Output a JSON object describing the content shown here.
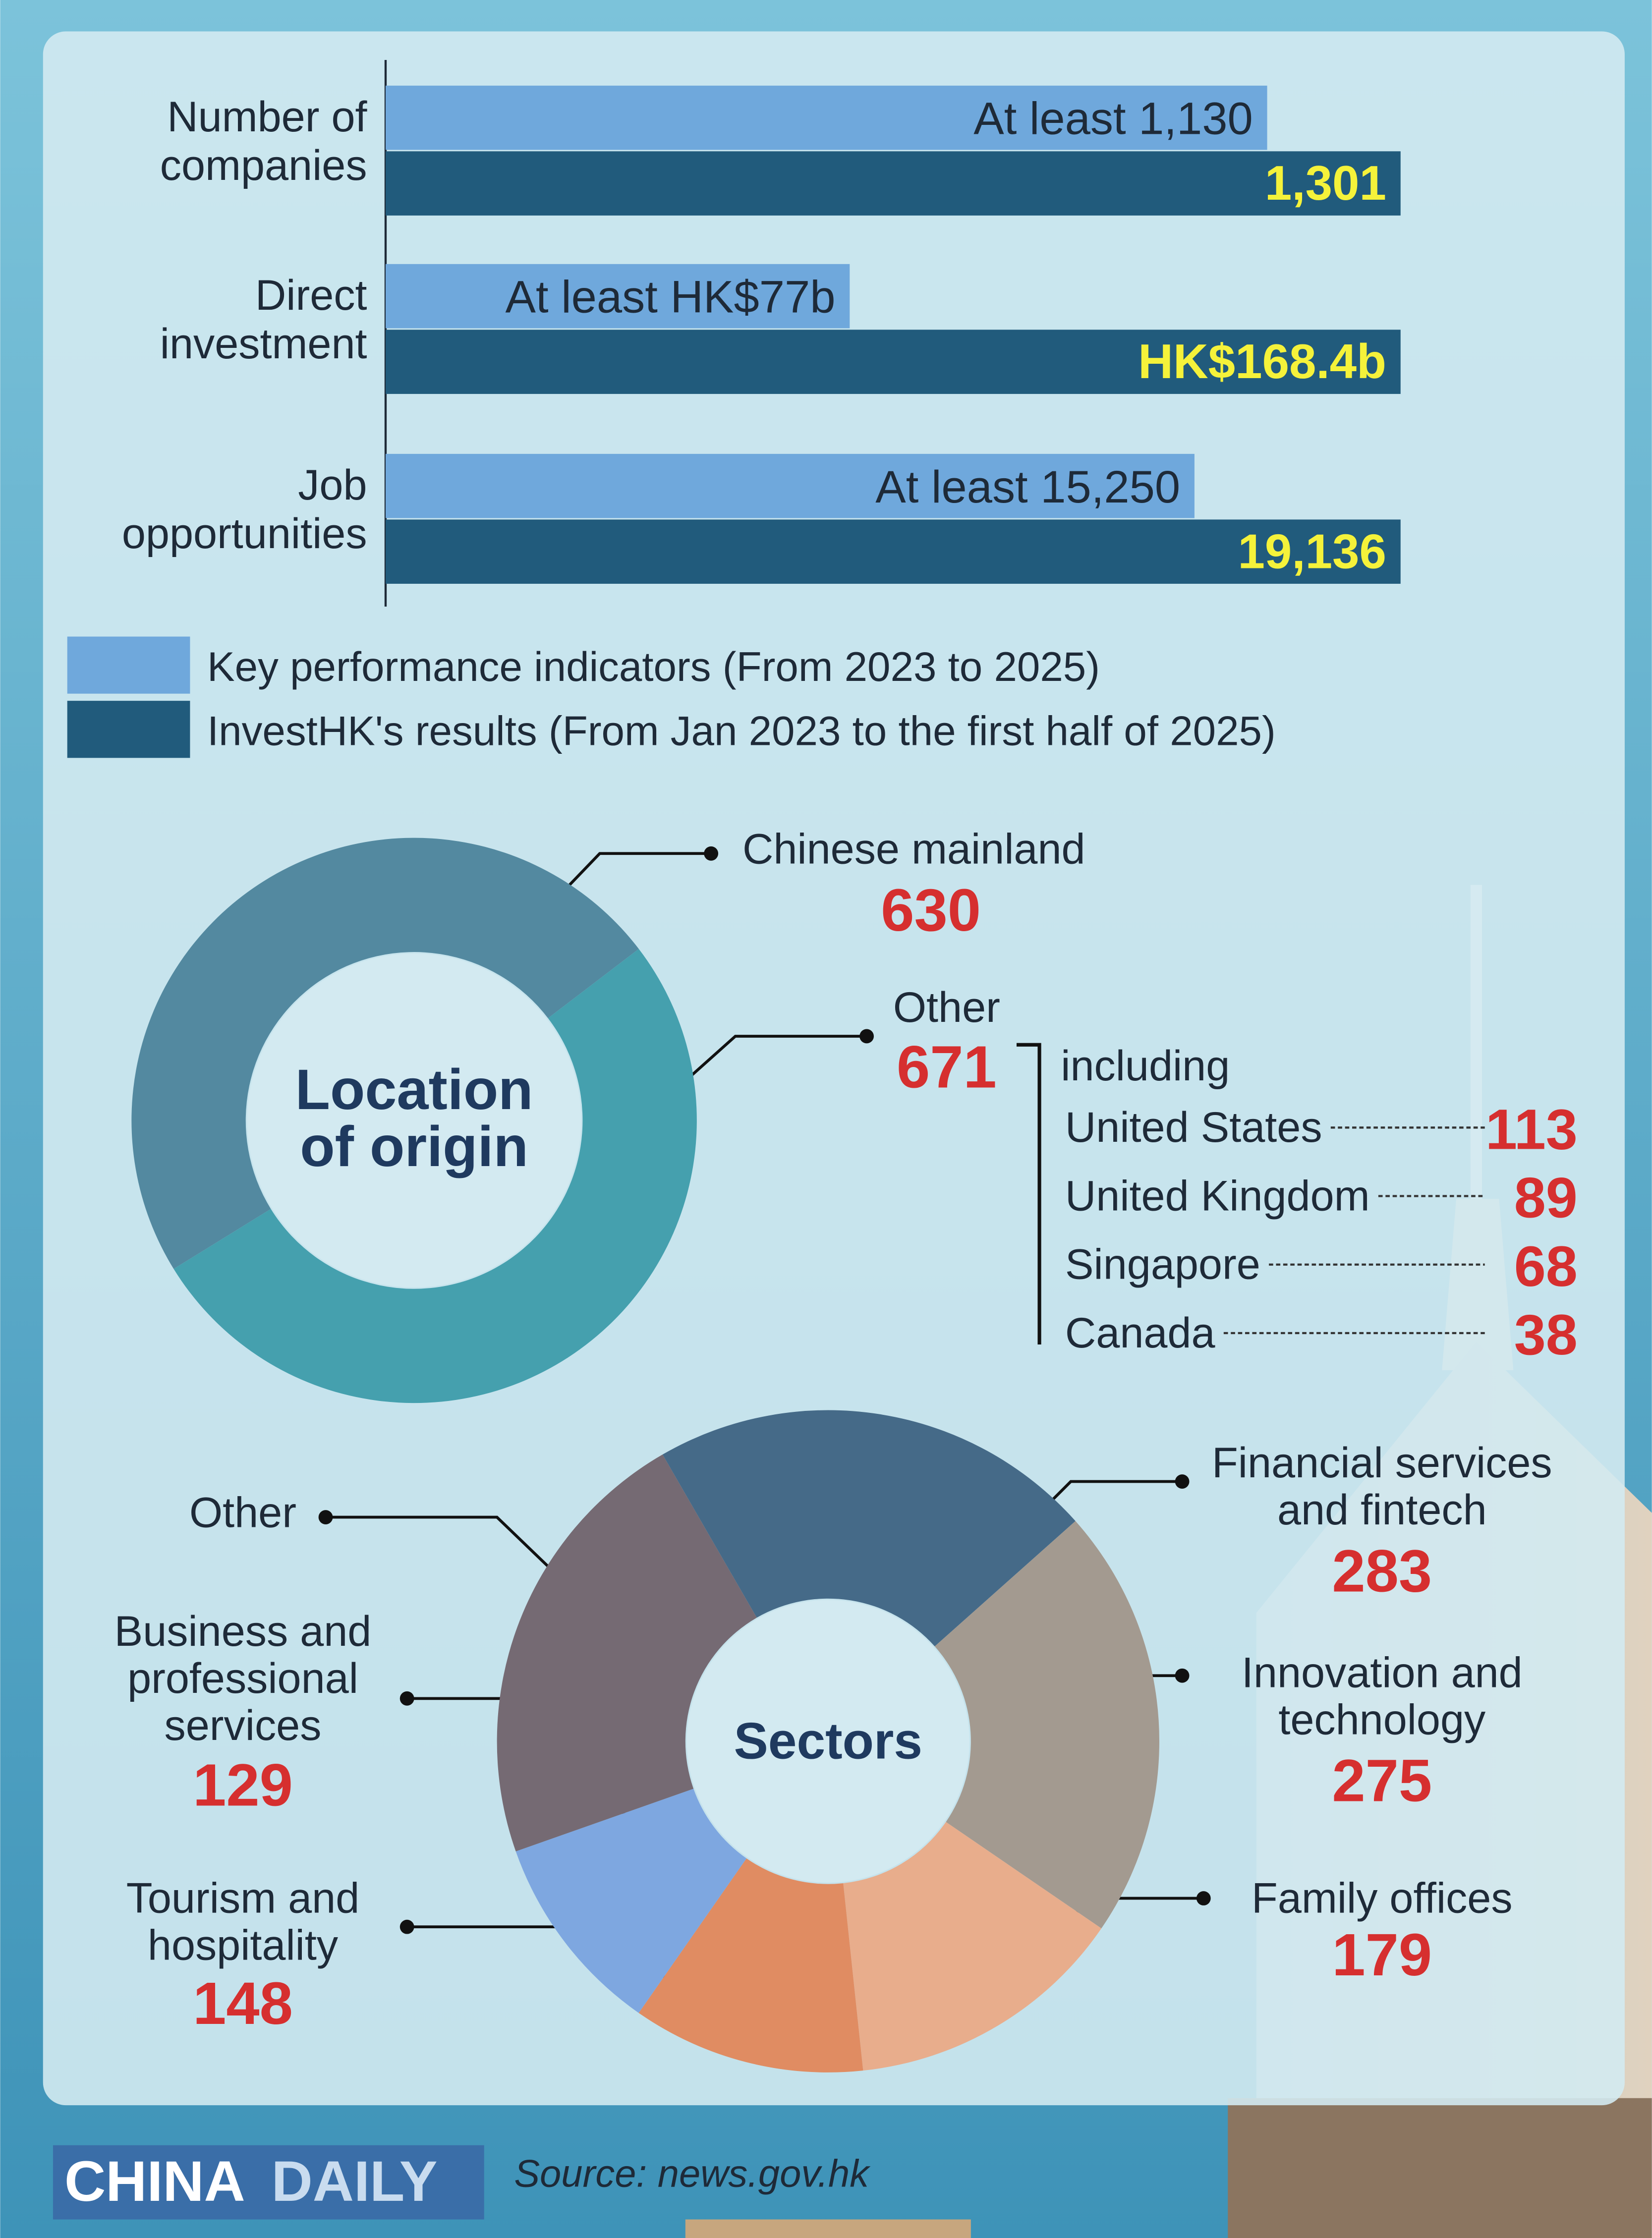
{
  "chart_data": [
    {
      "type": "hbar",
      "categories": [
        "Number of\ncompanies",
        "Direct\ninvestment",
        "Job\nopportunities"
      ],
      "series": [
        {
          "name": "Key performance indicators (From 2023 to 2025)",
          "color": "#6fa8dc",
          "values": [
            1130,
            77,
            15250
          ],
          "value_labels": [
            "At least 1,130",
            "At least HK$77b",
            "At least 15,250"
          ]
        },
        {
          "name": "InvestHK's results (From Jan 2023 to the first half of 2025)",
          "color": "#215b7c",
          "values": [
            1301,
            168.4,
            19136
          ],
          "value_labels": [
            "1,301",
            "HK$168.4b",
            "19,136"
          ]
        }
      ]
    },
    {
      "type": "donut",
      "center_label": "Location\nof origin",
      "categories": [
        "Chinese mainland",
        "Other"
      ],
      "values": [
        630,
        671
      ],
      "colors": [
        "#5389a0",
        "#45a0ae"
      ],
      "breakdown": {
        "title": "including",
        "items": [
          {
            "name": "United States",
            "value": 113
          },
          {
            "name": "United Kingdom",
            "value": 89
          },
          {
            "name": "Singapore",
            "value": 68
          },
          {
            "name": "Canada",
            "value": 38
          }
        ]
      }
    },
    {
      "type": "donut",
      "center_label": "Sectors",
      "categories": [
        "Financial services\nand fintech",
        "Innovation and\ntechnology",
        "Family offices",
        "Tourism and\nhospitality",
        "Business and\nprofessional\nservices",
        "Other"
      ],
      "values": [
        283,
        275,
        179,
        148,
        129,
        287
      ],
      "value_labels": [
        "283",
        "275",
        "179",
        "148",
        "129",
        null
      ],
      "colors": [
        "#456a88",
        "#a39a90",
        "#e8ad8c",
        "#e08c62",
        "#7ea7e0",
        "#756a73"
      ]
    }
  ],
  "footer": {
    "logo_left": "CHINA",
    "logo_right": "DAILY",
    "source": "Source:  news.gov.hk"
  }
}
